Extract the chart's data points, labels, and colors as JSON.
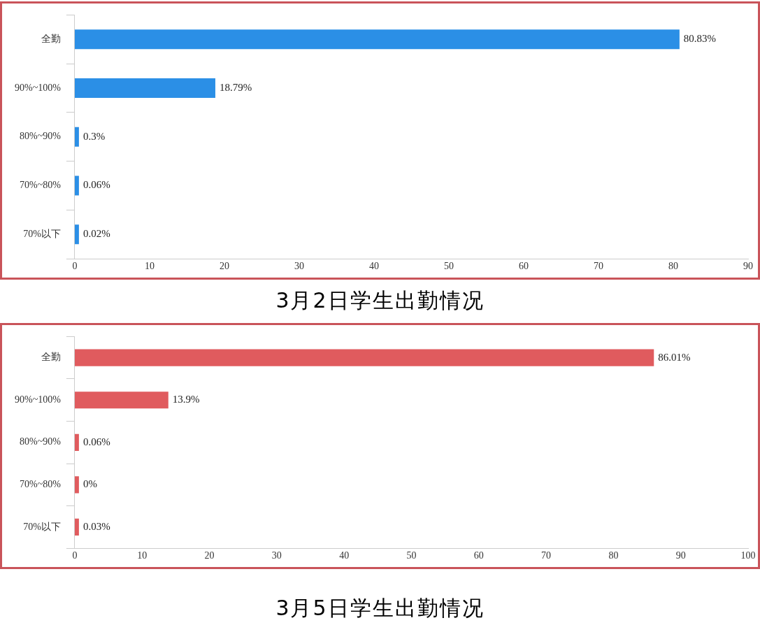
{
  "chart_data": [
    {
      "type": "bar",
      "orientation": "horizontal",
      "title": "3月2日学生出勤情况",
      "categories": [
        "全勤",
        "90%~100%",
        "80%~90%",
        "70%~80%",
        "70%以下"
      ],
      "values": [
        80.83,
        18.79,
        0.3,
        0.06,
        0.02
      ],
      "color": "#2b8fe6",
      "value_labels": [
        "80.83%",
        "18.79%",
        "0.3%",
        "0.06%",
        "0.02%"
      ],
      "xlim": [
        0,
        90
      ],
      "xticks": [
        0,
        10,
        20,
        30,
        40,
        50,
        60,
        70,
        80,
        90
      ],
      "grid": false,
      "legend": false
    },
    {
      "type": "bar",
      "orientation": "horizontal",
      "title": "3月5日学生出勤情况",
      "categories": [
        "全勤",
        "90%~100%",
        "80%~90%",
        "70%~80%",
        "70%以下"
      ],
      "values": [
        86.01,
        13.9,
        0.06,
        0,
        0.03
      ],
      "color": "#e05b5e",
      "value_labels": [
        "86.01%",
        "13.9%",
        "0.06%",
        "0%",
        "0.03%"
      ],
      "xlim": [
        0,
        100
      ],
      "xticks": [
        0,
        10,
        20,
        30,
        40,
        50,
        60,
        70,
        80,
        90,
        100
      ],
      "grid": false,
      "legend": false
    }
  ]
}
